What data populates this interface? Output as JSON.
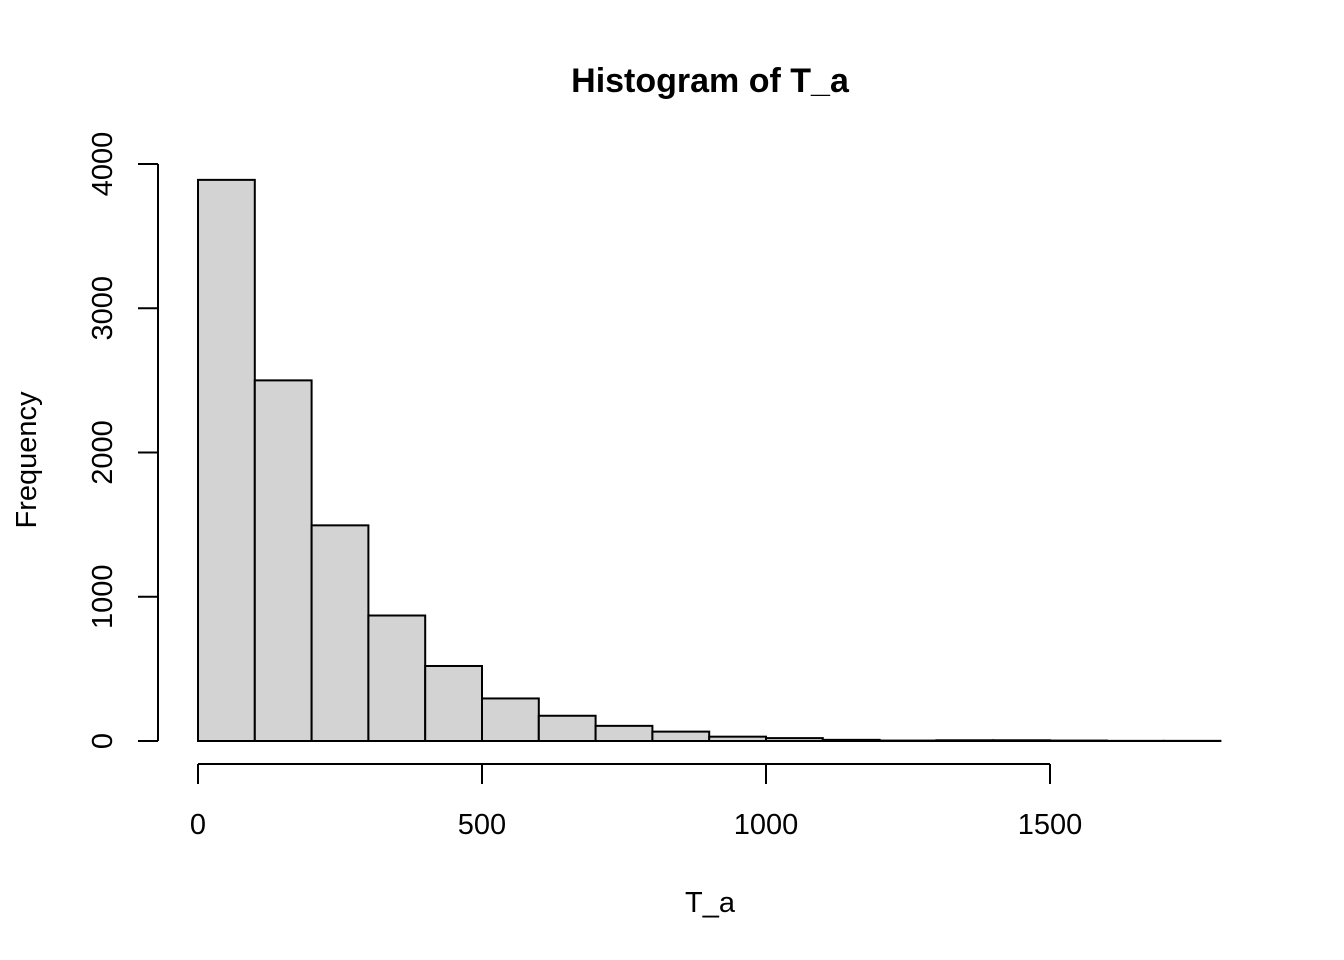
{
  "chart_data": {
    "type": "bar",
    "title": "Histogram of T_a",
    "xlabel": "T_a",
    "ylabel": "Frequency",
    "bin_edges": [
      0,
      100,
      200,
      300,
      400,
      500,
      600,
      700,
      800,
      900,
      1000,
      1100,
      1200,
      1300,
      1400,
      1500,
      1600,
      1700,
      1800
    ],
    "values": [
      3890,
      2500,
      1495,
      870,
      520,
      295,
      175,
      105,
      65,
      30,
      20,
      8,
      3,
      5,
      5,
      3,
      1,
      1
    ],
    "xlim": [
      0,
      1800
    ],
    "ylim": [
      0,
      4000
    ],
    "x_ticks": [
      0,
      500,
      1000,
      1500
    ],
    "x_tick_labels": [
      "0",
      "500",
      "1000",
      "1500"
    ],
    "y_ticks": [
      0,
      1000,
      2000,
      3000,
      4000
    ],
    "y_tick_labels": [
      "0",
      "1000",
      "2000",
      "3000",
      "4000"
    ],
    "grid": false,
    "colors": {
      "bar_fill": "#d3d3d3",
      "bar_stroke": "#000000"
    }
  }
}
